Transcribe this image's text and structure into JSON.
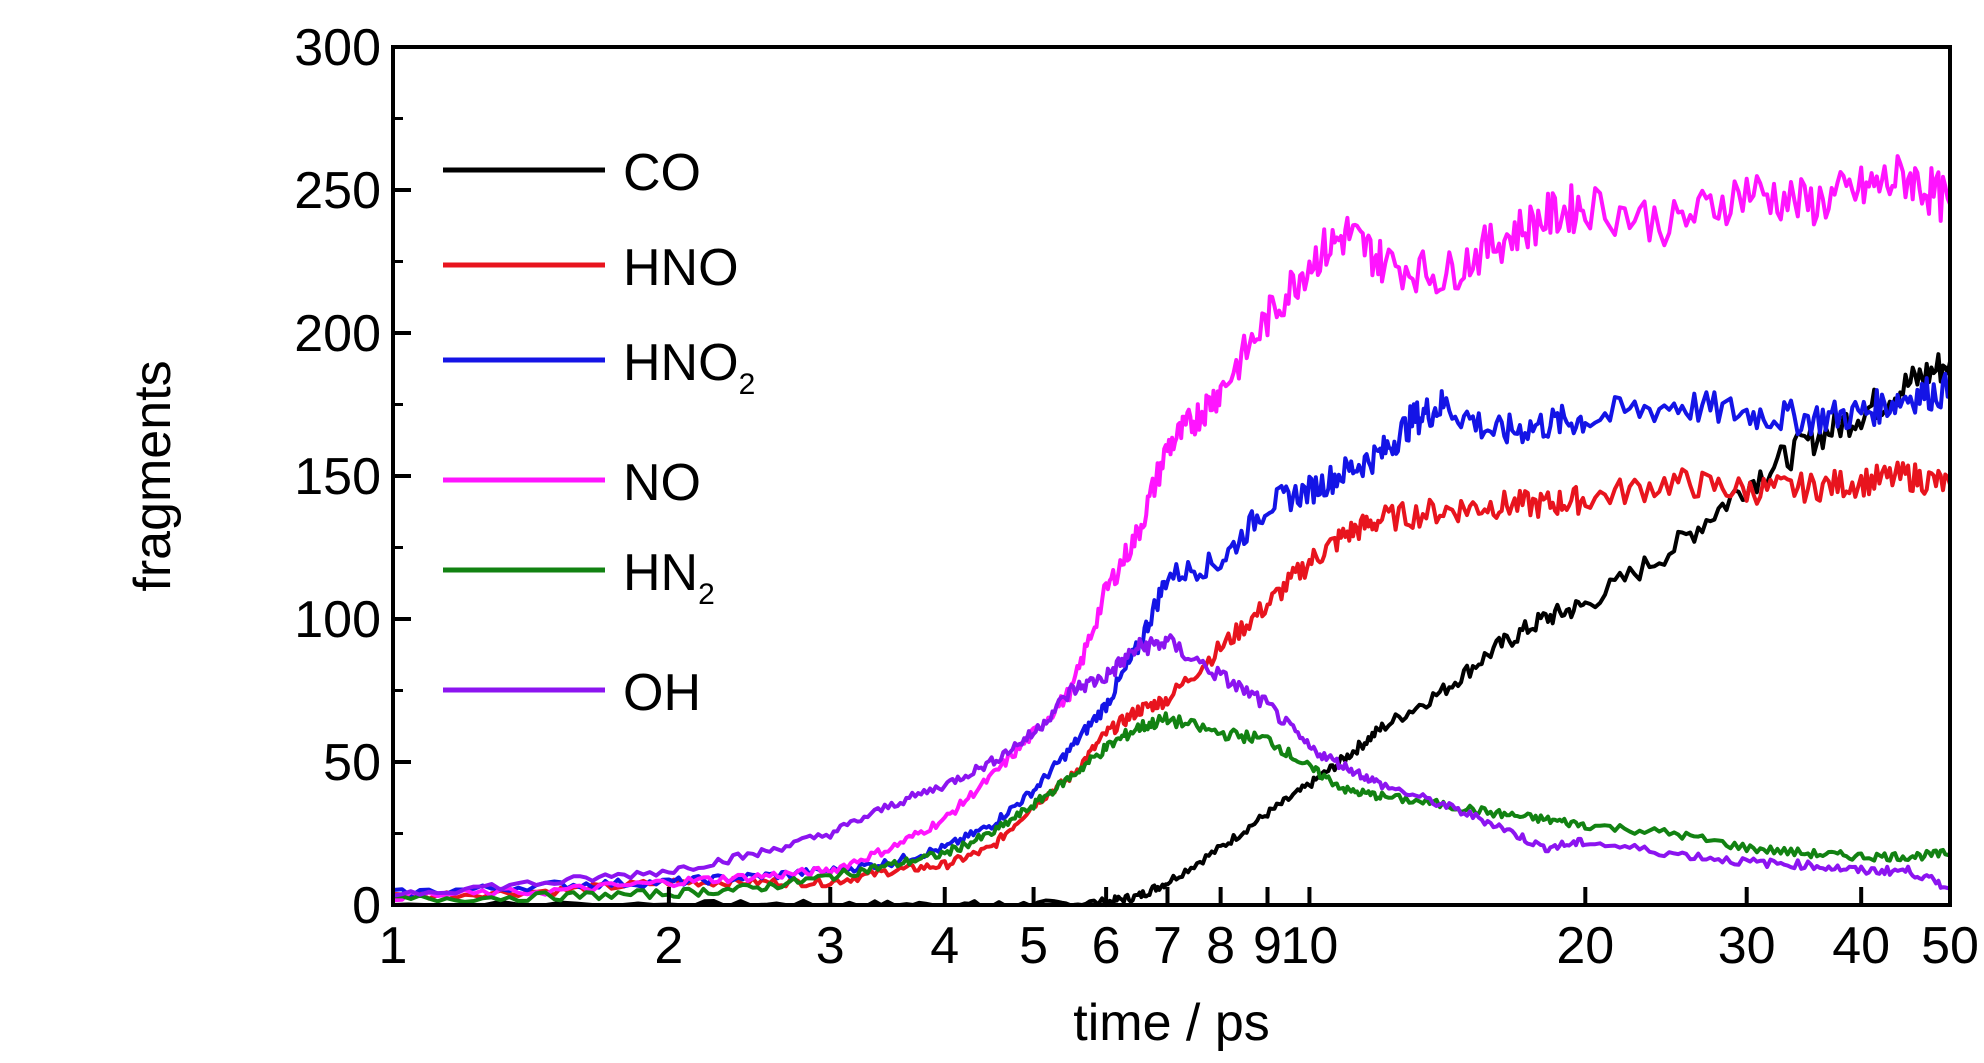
{
  "chart_data": {
    "type": "line",
    "xlabel": "time / ps",
    "ylabel": "fragments",
    "xscale": "log",
    "xlim": [
      1,
      50
    ],
    "ylim": [
      0,
      300
    ],
    "x_ticks": [
      1,
      2,
      3,
      4,
      5,
      6,
      7,
      8,
      9,
      10,
      20,
      30,
      40,
      50
    ],
    "x_tick_labels": [
      "1",
      "2",
      "3",
      "4",
      "5",
      "6",
      "7",
      "8",
      "9",
      "10",
      "20",
      "30",
      "40",
      "50"
    ],
    "y_ticks": [
      0,
      50,
      100,
      150,
      200,
      250,
      300
    ],
    "y_tick_labels": [
      "0",
      "50",
      "100",
      "150",
      "200",
      "250",
      "300"
    ],
    "grid": false,
    "legend_position": "upper-left",
    "series": [
      {
        "name": "CO",
        "label_main": "CO",
        "label_sub": "",
        "color": "#000000",
        "x": [
          1,
          2,
          3,
          4,
          5,
          6,
          6.5,
          7,
          8,
          9,
          10,
          11,
          12,
          14,
          16,
          18,
          20,
          25,
          30,
          35,
          40,
          45,
          50
        ],
        "y": [
          0,
          0,
          0,
          0,
          0,
          1,
          3,
          8,
          20,
          32,
          42,
          52,
          62,
          75,
          90,
          100,
          105,
          125,
          147,
          162,
          172,
          182,
          190
        ]
      },
      {
        "name": "HNO",
        "label_main": "HNO",
        "label_sub": "",
        "color": "#e8141e",
        "x": [
          1,
          1.5,
          2,
          2.5,
          3,
          3.5,
          4,
          4.5,
          5,
          5.5,
          6,
          6.5,
          7,
          8,
          9,
          10,
          11,
          12,
          14,
          16,
          18,
          20,
          25,
          30,
          35,
          40,
          45,
          50
        ],
        "y": [
          3,
          5,
          8,
          8,
          8,
          12,
          14,
          20,
          35,
          45,
          60,
          68,
          72,
          90,
          105,
          120,
          130,
          135,
          138,
          140,
          140,
          142,
          148,
          145,
          146,
          148,
          150,
          147
        ]
      },
      {
        "name": "HNO₂",
        "label_main": "HNO",
        "label_sub": "2",
        "color": "#1414e6",
        "x": [
          1,
          1.5,
          2,
          2.5,
          3,
          3.5,
          4,
          4.5,
          5,
          5.5,
          6,
          6.5,
          7,
          8,
          9,
          10,
          11,
          12,
          13,
          14,
          16,
          18,
          20,
          25,
          30,
          35,
          40,
          45,
          50
        ],
        "y": [
          4,
          7,
          8,
          10,
          12,
          15,
          20,
          28,
          40,
          55,
          70,
          90,
          115,
          120,
          140,
          145,
          152,
          158,
          170,
          175,
          165,
          168,
          170,
          175,
          172,
          170,
          172,
          178,
          180
        ]
      },
      {
        "name": "NO",
        "label_main": "NO",
        "label_sub": "",
        "color": "#ff14ff",
        "x": [
          1,
          1.5,
          2,
          2.5,
          3,
          3.5,
          4,
          4.5,
          5,
          5.5,
          6,
          6.5,
          7,
          7.5,
          8,
          9,
          10,
          11,
          12,
          14,
          16,
          18,
          20,
          25,
          30,
          35,
          40,
          45,
          50
        ],
        "y": [
          3,
          5,
          8,
          10,
          12,
          20,
          30,
          45,
          60,
          75,
          110,
          130,
          160,
          170,
          180,
          205,
          225,
          235,
          225,
          220,
          232,
          240,
          245,
          238,
          250,
          245,
          250,
          255,
          245
        ]
      },
      {
        "name": "HN₂",
        "label_main": "HN",
        "label_sub": "2",
        "color": "#128212",
        "x": [
          1,
          1.5,
          2,
          2.5,
          3,
          3.5,
          4,
          4.5,
          5,
          5.5,
          6,
          6.5,
          7,
          8,
          9,
          10,
          11,
          12,
          14,
          16,
          18,
          20,
          25,
          30,
          35,
          40,
          45,
          50
        ],
        "y": [
          2,
          3,
          4,
          6,
          10,
          14,
          18,
          25,
          35,
          45,
          55,
          62,
          65,
          60,
          58,
          48,
          40,
          38,
          35,
          32,
          30,
          28,
          25,
          20,
          18,
          17,
          17,
          18
        ]
      },
      {
        "name": "OH",
        "label_main": "OH",
        "label_sub": "",
        "color": "#8c14f0",
        "x": [
          1,
          1.5,
          2,
          2.5,
          3,
          3.5,
          4,
          4.5,
          5,
          5.5,
          6,
          6.5,
          7,
          8,
          9,
          10,
          11,
          12,
          14,
          16,
          18,
          20,
          25,
          30,
          35,
          40,
          45,
          50
        ],
        "y": [
          4,
          8,
          12,
          18,
          25,
          35,
          42,
          50,
          60,
          75,
          80,
          90,
          92,
          80,
          70,
          55,
          48,
          42,
          35,
          28,
          20,
          22,
          18,
          15,
          14,
          12,
          12,
          6
        ]
      }
    ]
  }
}
